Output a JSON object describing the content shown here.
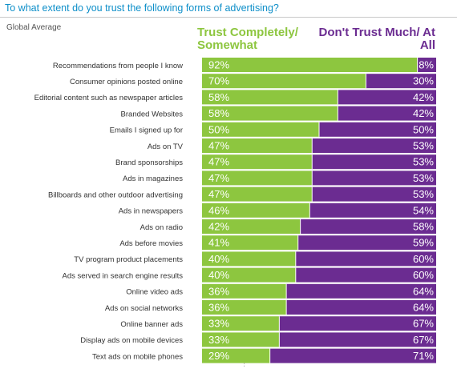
{
  "header": {
    "title": "To what extent do you trust the following forms of advertising?",
    "subtitle": "Global Average"
  },
  "colors": {
    "trust": "#8dc63f",
    "distrust": "#6b2c91",
    "title": "#0e8fc9"
  },
  "chart_data": {
    "type": "bar",
    "orientation": "horizontal",
    "stacked": true,
    "percent_suffix": "%",
    "categories": [
      "Recommendations from people I know",
      "Consumer opinions posted online",
      "Editorial content such as newspaper articles",
      "Branded Websites",
      "Emails I signed up for",
      "Ads on TV",
      "Brand sponsorships",
      "Ads in magazines",
      "Billboards and other outdoor advertising",
      "Ads in newspapers",
      "Ads on radio",
      "Ads before movies",
      "TV program product placements",
      "Ads served in search engine results",
      "Online video ads",
      "Ads on social networks",
      "Online banner ads",
      "Display ads on mobile devices",
      "Text ads on mobile phones"
    ],
    "series": [
      {
        "name": "Trust Completely/ Somewhat",
        "values": [
          92,
          70,
          58,
          58,
          50,
          47,
          47,
          47,
          47,
          46,
          42,
          41,
          40,
          40,
          36,
          36,
          33,
          33,
          29
        ]
      },
      {
        "name": "Don't Trust Much/ At All",
        "values": [
          8,
          30,
          42,
          42,
          50,
          53,
          53,
          53,
          53,
          54,
          58,
          59,
          60,
          60,
          64,
          64,
          67,
          67,
          71
        ]
      }
    ],
    "xlim": [
      0,
      100
    ],
    "legend": "top",
    "grid": false
  }
}
